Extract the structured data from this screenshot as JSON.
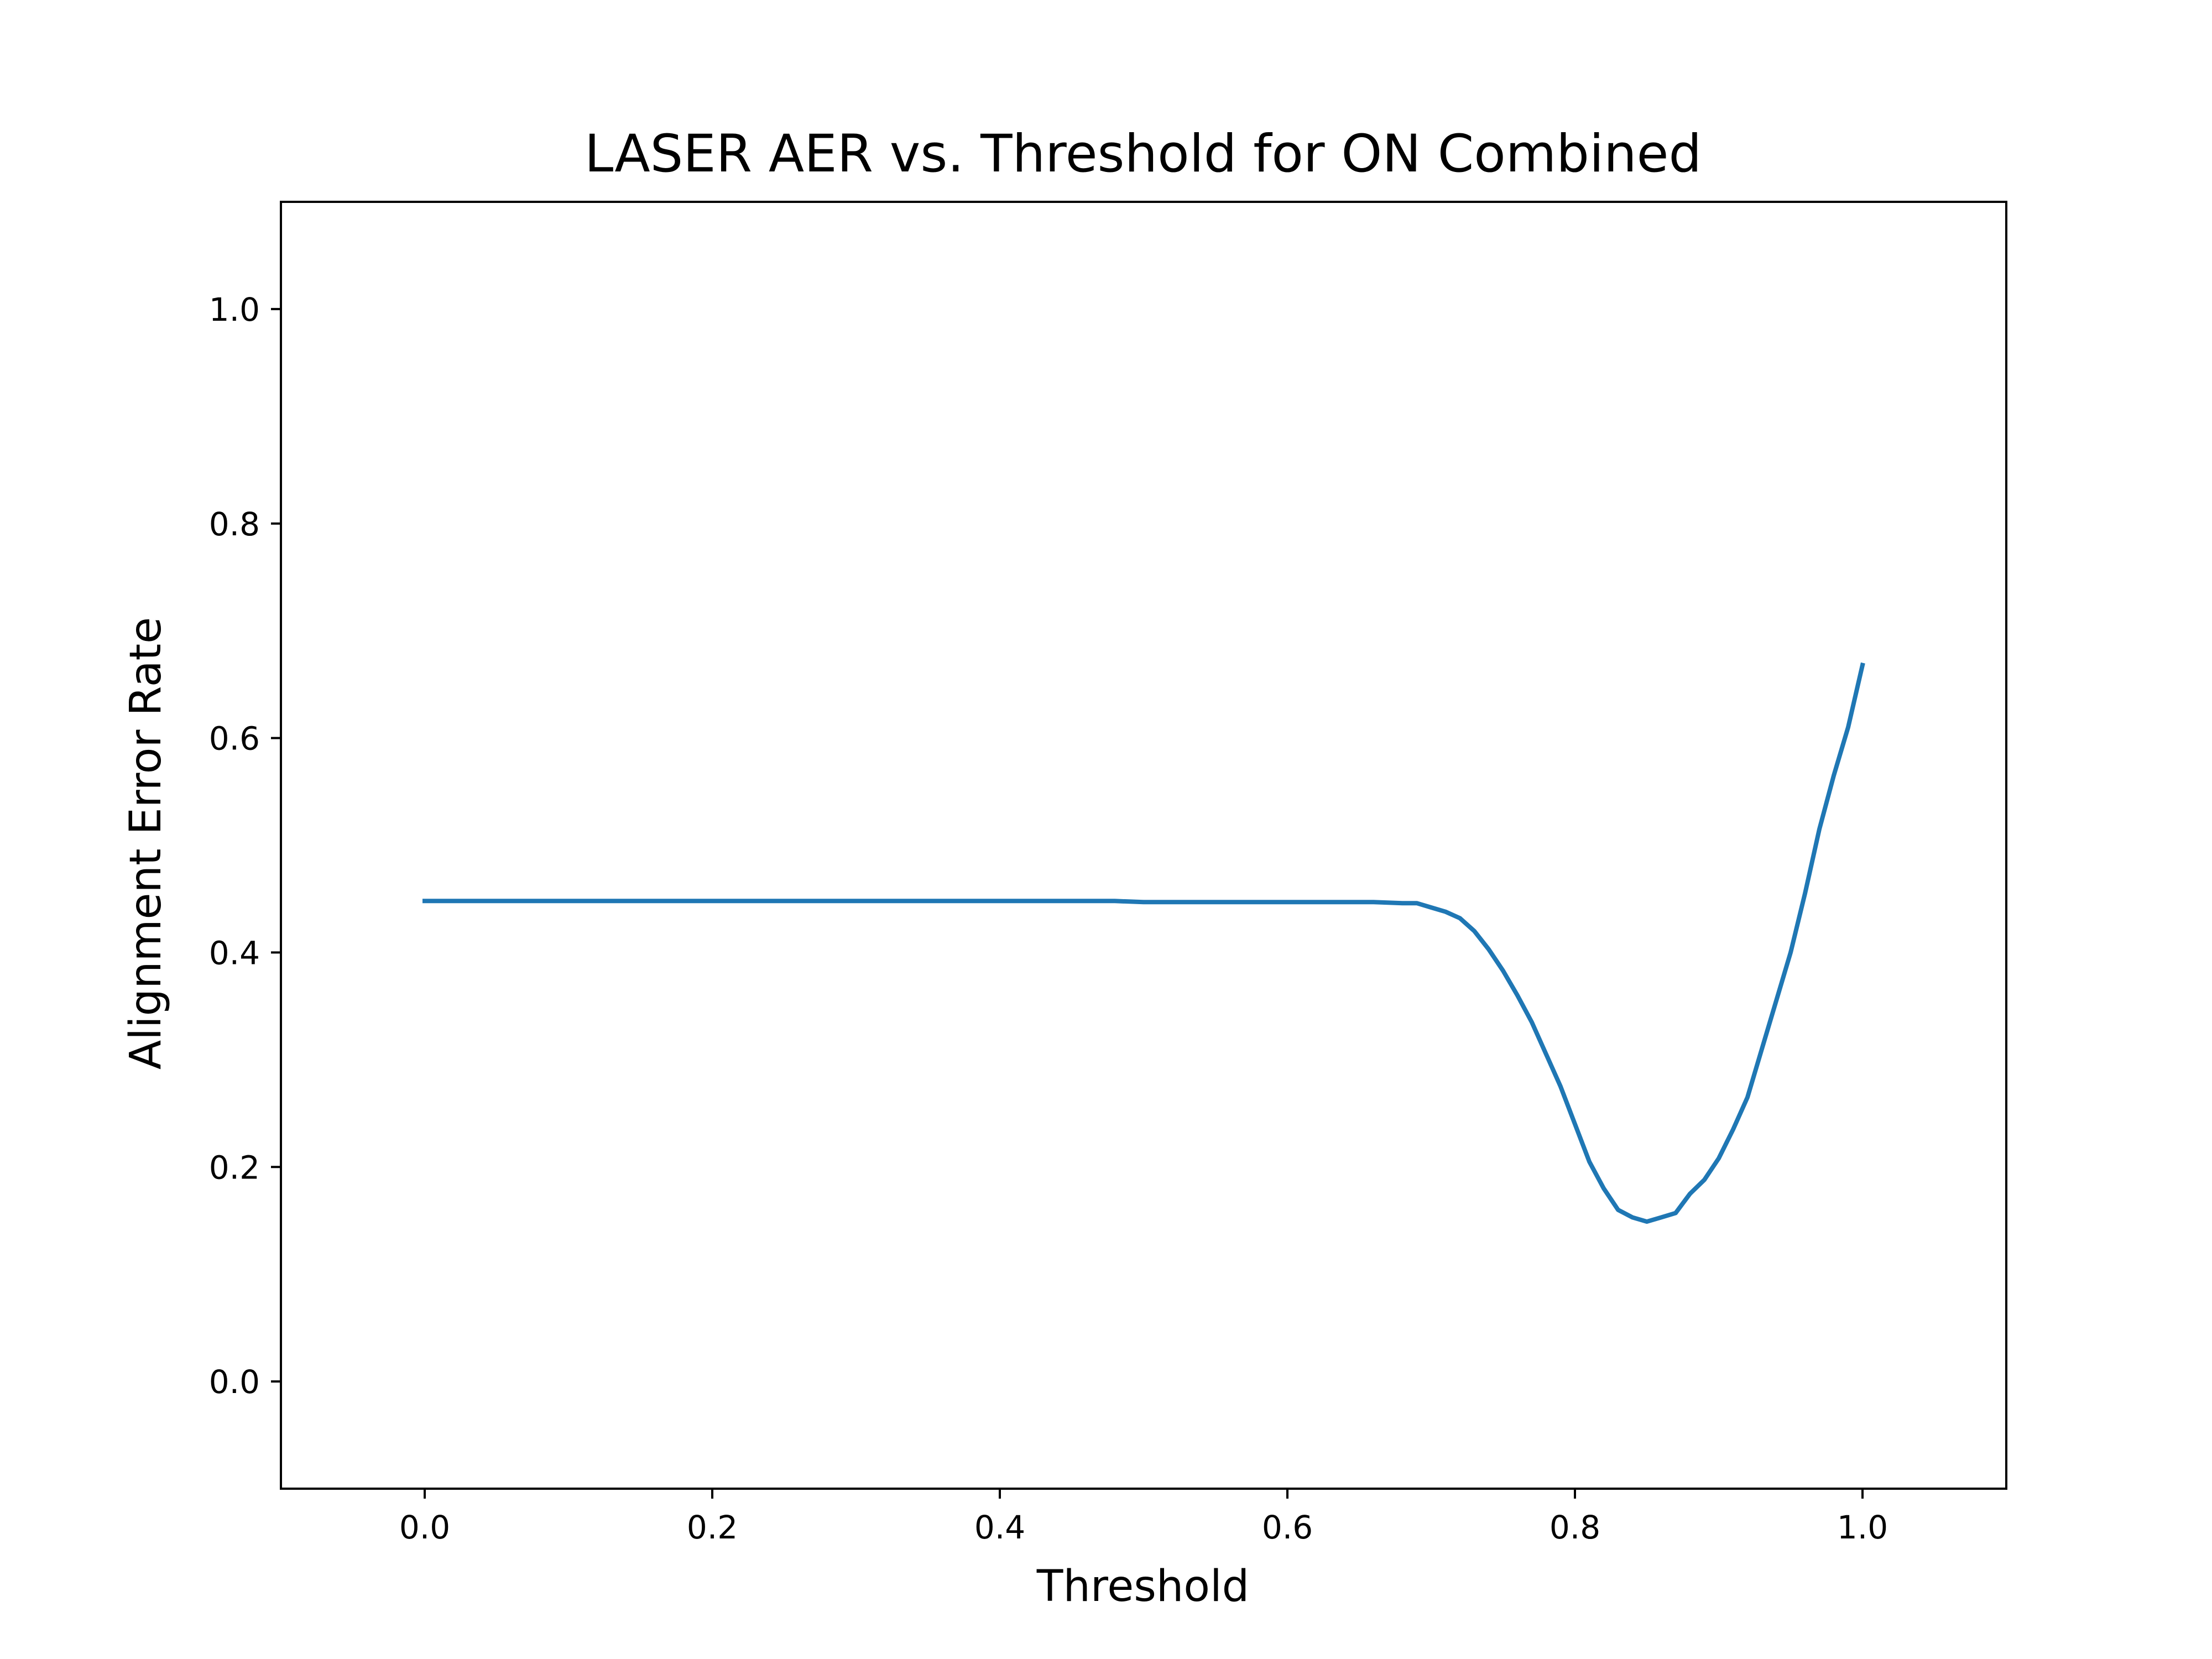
{
  "chart_data": {
    "type": "line",
    "title": "LASER AER vs. Threshold for ON Combined",
    "xlabel": "Threshold",
    "ylabel": "Alignment Error Rate",
    "xlim": [
      -0.1,
      1.1
    ],
    "ylim": [
      -0.1,
      1.1
    ],
    "xticks": [
      "0.0",
      "0.2",
      "0.4",
      "0.6",
      "0.8",
      "1.0"
    ],
    "yticks": [
      "0.0",
      "0.2",
      "0.4",
      "0.6",
      "0.8",
      "1.0"
    ],
    "grid": false,
    "series": [
      {
        "color": "#1f77b4",
        "x": [
          0.0,
          0.1,
          0.2,
          0.3,
          0.4,
          0.48,
          0.5,
          0.6,
          0.66,
          0.68,
          0.69,
          0.7,
          0.71,
          0.72,
          0.73,
          0.74,
          0.75,
          0.76,
          0.77,
          0.78,
          0.79,
          0.8,
          0.81,
          0.82,
          0.83,
          0.84,
          0.85,
          0.86,
          0.87,
          0.88,
          0.89,
          0.9,
          0.91,
          0.92,
          0.93,
          0.94,
          0.95,
          0.96,
          0.97,
          0.98,
          0.99,
          1.0
        ],
        "y": [
          0.448,
          0.448,
          0.448,
          0.448,
          0.448,
          0.448,
          0.447,
          0.447,
          0.447,
          0.446,
          0.446,
          0.442,
          0.438,
          0.432,
          0.42,
          0.403,
          0.383,
          0.36,
          0.335,
          0.305,
          0.275,
          0.24,
          0.205,
          0.18,
          0.16,
          0.153,
          0.149,
          0.153,
          0.157,
          0.175,
          0.188,
          0.208,
          0.235,
          0.265,
          0.31,
          0.355,
          0.4,
          0.455,
          0.515,
          0.565,
          0.61,
          0.668
        ]
      }
    ]
  }
}
